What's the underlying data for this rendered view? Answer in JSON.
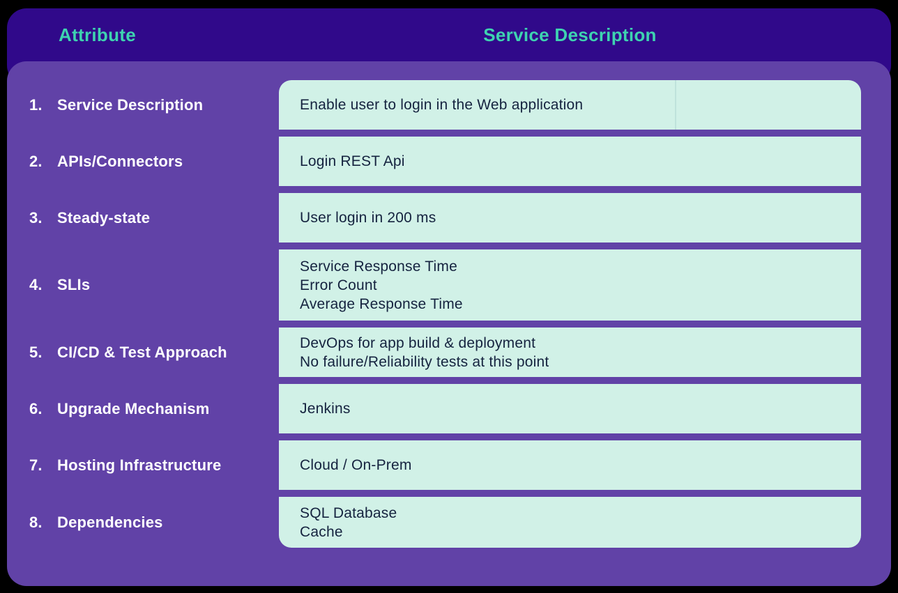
{
  "header": {
    "attribute": "Attribute",
    "service_description": "Service Description"
  },
  "rows": [
    {
      "num": "1.",
      "label": "Service Description",
      "lines": [
        "Enable user to login in the Web application"
      ]
    },
    {
      "num": "2.",
      "label": "APIs/Connectors",
      "lines": [
        "Login REST Api"
      ]
    },
    {
      "num": "3.",
      "label": "Steady-state",
      "lines": [
        "User login in 200 ms"
      ]
    },
    {
      "num": "4.",
      "label": "SLIs",
      "lines": [
        "Service Response Time",
        "Error Count",
        "Average Response Time"
      ]
    },
    {
      "num": "5.",
      "label": "CI/CD & Test Approach",
      "lines": [
        "DevOps for app build & deployment",
        "No failure/Reliability tests at this point"
      ]
    },
    {
      "num": "6.",
      "label": "Upgrade Mechanism",
      "lines": [
        "Jenkins"
      ]
    },
    {
      "num": "7.",
      "label": "Hosting Infrastructure",
      "lines": [
        "Cloud / On-Prem"
      ]
    },
    {
      "num": "8.",
      "label": "Dependencies",
      "lines": [
        "SQL Database",
        "Cache"
      ]
    }
  ],
  "colors": {
    "page_bg": "#000000",
    "header_bg": "#30098a",
    "body_bg": "#6142a7",
    "cell_bg": "#d1f1e7",
    "header_text": "#3ed3b0",
    "label_text": "#ffffff",
    "value_text": "#15233f",
    "divider": "#bfe2db"
  }
}
